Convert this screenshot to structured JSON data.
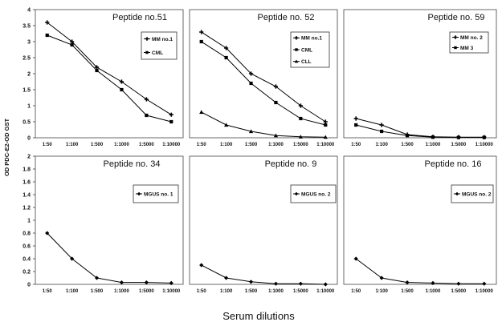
{
  "ylabel": "OD PDC-E2-OD GST",
  "xlabel": "Serum dilutions",
  "chart_data": [
    {
      "type": "line",
      "title": "Peptide no.51",
      "categories": [
        "1:50",
        "1:100",
        "1:500",
        "1:1000",
        "1:5000",
        "1:10000"
      ],
      "ylim": [
        0,
        4
      ],
      "yticks": [
        "0",
        "0.5",
        "1",
        "1.5",
        "2",
        "2.5",
        "3",
        "3.5",
        "4"
      ],
      "series": [
        {
          "name": "MM no.1",
          "marker": "plus",
          "values": [
            3.6,
            3.0,
            2.2,
            1.75,
            1.2,
            0.72
          ]
        },
        {
          "name": "CML",
          "marker": "square",
          "values": [
            3.2,
            2.9,
            2.1,
            1.5,
            0.7,
            0.5
          ]
        }
      ]
    },
    {
      "type": "line",
      "title": "Peptide no. 52",
      "categories": [
        "1:50",
        "1:100",
        "1:500",
        "1:1000",
        "1:5000",
        "1:10000"
      ],
      "ylim": [
        0,
        4
      ],
      "series": [
        {
          "name": "MM no.1",
          "marker": "plus",
          "values": [
            3.3,
            2.8,
            2.0,
            1.6,
            1.0,
            0.5
          ]
        },
        {
          "name": "CML",
          "marker": "square",
          "values": [
            3.0,
            2.5,
            1.7,
            1.1,
            0.6,
            0.4
          ]
        },
        {
          "name": "CLL",
          "marker": "triangle",
          "values": [
            0.8,
            0.4,
            0.2,
            0.07,
            0.03,
            0.02
          ]
        }
      ]
    },
    {
      "type": "line",
      "title": "Peptide no. 59",
      "categories": [
        "1:50",
        "1:100",
        "1:500",
        "1:1000",
        "1:5000",
        "1:10000"
      ],
      "ylim": [
        0,
        4
      ],
      "series": [
        {
          "name": "MM no. 2",
          "marker": "plus",
          "values": [
            0.6,
            0.4,
            0.1,
            0.03,
            0.02,
            0.02
          ]
        },
        {
          "name": "MM 3",
          "marker": "square",
          "values": [
            0.4,
            0.2,
            0.07,
            0.02,
            0.01,
            0.01
          ]
        }
      ]
    },
    {
      "type": "line",
      "title": "Peptide no. 34",
      "categories": [
        "1:50",
        "1:100",
        "1:500",
        "1:1000",
        "1:5000",
        "1:10000"
      ],
      "ylim": [
        0,
        2
      ],
      "yticks": [
        "0",
        "0.2",
        "0.4",
        "0.6",
        "0.8",
        "1",
        "1.2",
        "1.4",
        "1.6",
        "1.8",
        "2"
      ],
      "series": [
        {
          "name": "MGUS no. 1",
          "marker": "diamond",
          "values": [
            0.8,
            0.4,
            0.1,
            0.03,
            0.03,
            0.02
          ]
        }
      ]
    },
    {
      "type": "line",
      "title": "Peptide no. 9",
      "categories": [
        "1:50",
        "1:100",
        "1:500",
        "1:1000",
        "1:5000",
        "1:10000"
      ],
      "ylim": [
        0,
        2
      ],
      "series": [
        {
          "name": "MGUS no. 2",
          "marker": "diamond",
          "values": [
            0.3,
            0.1,
            0.04,
            0.01,
            0.01,
            0.0
          ]
        }
      ]
    },
    {
      "type": "line",
      "title": "Peptide no. 16",
      "categories": [
        "1:50",
        "1:100",
        "1:500",
        "1:1000",
        "1:5000",
        "1:10000"
      ],
      "ylim": [
        0,
        2
      ],
      "series": [
        {
          "name": "MGUS no. 2",
          "marker": "diamond",
          "values": [
            0.4,
            0.1,
            0.03,
            0.02,
            0.01,
            0.01
          ]
        }
      ]
    }
  ]
}
